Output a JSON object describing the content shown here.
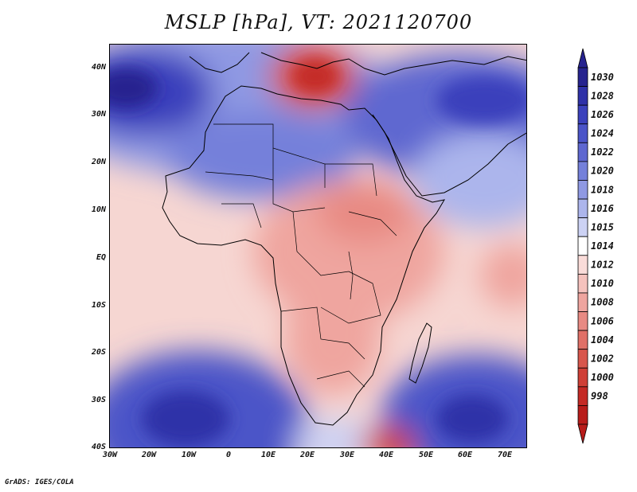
{
  "title": "MSLP [hPa], VT: 2021120700",
  "footer": "GrADS: IGES/COLA",
  "latitude_labels": [
    "40N",
    "30N",
    "20N",
    "10N",
    "EQ",
    "10S",
    "20S",
    "30S",
    "40S"
  ],
  "longitude_labels": [
    "30W",
    "20W",
    "10W",
    "0",
    "10E",
    "20E",
    "30E",
    "40E",
    "50E",
    "60E",
    "70E"
  ],
  "colorbar": {
    "levels": [
      "1030",
      "1028",
      "1026",
      "1024",
      "1022",
      "1020",
      "1018",
      "1016",
      "1015",
      "1014",
      "1012",
      "1010",
      "1008",
      "1006",
      "1004",
      "1002",
      "1000",
      "998"
    ],
    "colors": [
      "#26238f",
      "#2f31a8",
      "#3b41bc",
      "#4b54c8",
      "#5e67d0",
      "#7480da",
      "#8f99e3",
      "#acb5ec",
      "#ccd2f4",
      "#ffffff",
      "#fadcd9",
      "#f5c2bd",
      "#efa59f",
      "#e88a83",
      "#e07067",
      "#d8564c",
      "#cf3f36",
      "#c42a25",
      "#b81c1a"
    ]
  },
  "colors": {
    "deep_high": "#2a2996",
    "high": "#4c57c8",
    "moderate_high": "#9aa4e6",
    "neutral": "#ffffff",
    "moderate_low": "#f6cfca",
    "low": "#e88a83",
    "deep_low": "#c8302b",
    "coastline": "#000000"
  }
}
